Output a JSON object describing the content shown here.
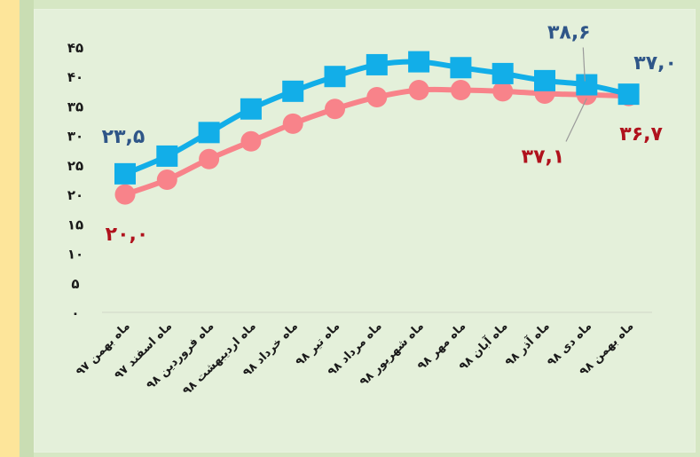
{
  "chart_data": {
    "type": "line",
    "title": "",
    "xlabel": "",
    "ylabel": "",
    "ylim": [
      0,
      45
    ],
    "y_ticks": [
      "۰",
      "۵",
      "۱۰",
      "۱۵",
      "۲۰",
      "۲۵",
      "۳۰",
      "۳۵",
      "۴۰",
      "۴۵"
    ],
    "categories": [
      "ماه بهمن ۹۷",
      "ماه اسفند ۹۷",
      "ماه فروردین ۹۸",
      "ماه اردیبهشت ۹۸",
      "ماه خرداد ۹۸",
      "ماه تیر ۹۸",
      "ماه مرداد ۹۸",
      "ماه شهریور ۹۸",
      "ماه مهر ۹۸",
      "ماه آبان ۹۸",
      "ماه آذر ۹۸",
      "ماه دی ۹۸",
      "ماه بهمن ۹۸"
    ],
    "series": [
      {
        "values": [
          23.5,
          26.5,
          30.5,
          34.5,
          37.5,
          40.0,
          42.0,
          42.5,
          41.5,
          40.5,
          39.3,
          38.6,
          37.0
        ],
        "color": "#12aee8",
        "marker": "square"
      },
      {
        "values": [
          20.0,
          22.5,
          26.0,
          29.0,
          32.0,
          34.5,
          36.5,
          37.7,
          37.7,
          37.5,
          37.1,
          36.9,
          36.7
        ],
        "color": "#f8838a",
        "marker": "circle"
      }
    ],
    "annotations": [
      {
        "series": 0,
        "point": 0,
        "text": "۲۳,۵",
        "color": "#2f5688"
      },
      {
        "series": 0,
        "point": 11,
        "text": "۳۸,۶",
        "color": "#2f5688"
      },
      {
        "series": 0,
        "point": 12,
        "text": "۳۷,۰",
        "color": "#2f5688"
      },
      {
        "series": 1,
        "point": 0,
        "text": "۲۰,۰",
        "color": "#b0121d"
      },
      {
        "series": 1,
        "point": 10,
        "text": "۳۷,۱",
        "color": "#b0121d"
      },
      {
        "series": 1,
        "point": 12,
        "text": "۳۶,۷",
        "color": "#b0121d"
      }
    ],
    "grid": false,
    "legend": "none"
  }
}
